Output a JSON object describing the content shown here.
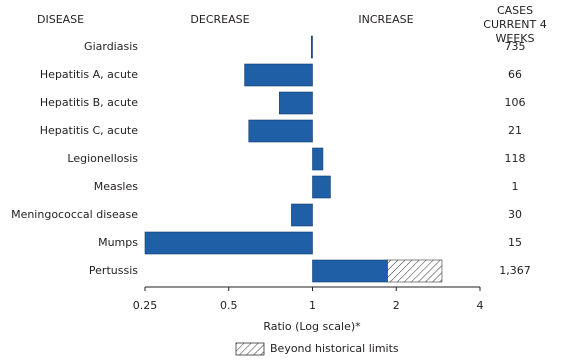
{
  "chart_data": {
    "type": "bar",
    "orientation": "horizontal",
    "xscale": "log",
    "header_disease": "DISEASE",
    "header_decrease": "DECREASE",
    "header_increase": "INCREASE",
    "cases_title": "CASES CURRENT 4 WEEKS",
    "xlabel": "Ratio (Log scale)*",
    "categories": [
      "Giardiasis",
      "Hepatitis A, acute",
      "Hepatitis B, acute",
      "Hepatitis C, acute",
      "Legionellosis",
      "Measles",
      "Meningococcal disease",
      "Mumps",
      "Pertussis"
    ],
    "values": [
      0.99,
      0.57,
      0.76,
      0.59,
      1.09,
      1.16,
      0.84,
      0.25,
      1.86
    ],
    "color": "#1f5fa6",
    "beyond_historical_limits": {
      "label": "Beyond historical limits",
      "values": [
        null,
        null,
        null,
        null,
        null,
        null,
        null,
        null,
        2.92
      ]
    },
    "cases": {
      "values": [
        735,
        66,
        106,
        21,
        118,
        1,
        30,
        15,
        1367
      ],
      "value_labels": [
        "735",
        "66",
        "106",
        "21",
        "118",
        "1",
        "30",
        "15",
        "1,367"
      ]
    },
    "xlim": [
      0.25,
      4
    ],
    "xticks": [
      0.25,
      0.5,
      1,
      2,
      4
    ]
  }
}
